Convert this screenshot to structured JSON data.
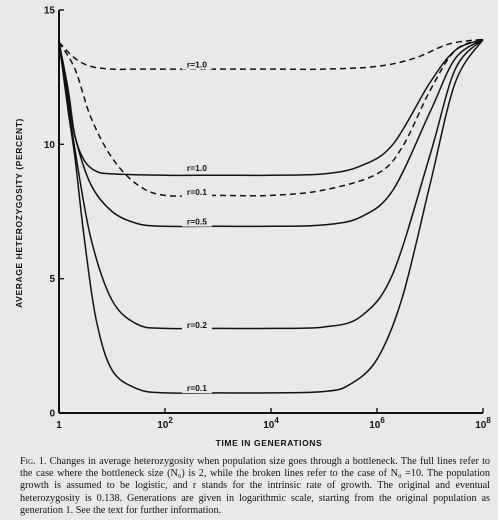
{
  "chart_data": {
    "type": "line",
    "xlabel": "TIME IN GENERATIONS",
    "ylabel": "AVERAGE HETEROZYGOSITY (PERCENT)",
    "x_scale": "log",
    "xlim": [
      1,
      100000000
    ],
    "ylim": [
      0,
      15
    ],
    "x_ticks": [
      {
        "value": 1,
        "label": "1",
        "exp": ""
      },
      {
        "value": 100,
        "label": "10",
        "exp": "2"
      },
      {
        "value": 10000,
        "label": "10",
        "exp": "4"
      },
      {
        "value": 1000000,
        "label": "10",
        "exp": "6"
      },
      {
        "value": 100000000,
        "label": "10",
        "exp": "8"
      }
    ],
    "y_ticks": [
      {
        "value": 0,
        "label": "0"
      },
      {
        "value": 5,
        "label": "5"
      },
      {
        "value": 10,
        "label": "10"
      },
      {
        "value": 15,
        "label": "15"
      }
    ],
    "series": [
      {
        "name": "r=1.0",
        "style": "dashed",
        "x": [
          1,
          2,
          4,
          10,
          30,
          100,
          1000,
          10000,
          100000,
          1000000,
          5000000,
          20000000,
          50000000,
          100000000
        ],
        "y": [
          13.8,
          13.2,
          12.9,
          12.8,
          12.8,
          12.8,
          12.8,
          12.8,
          12.8,
          12.9,
          13.2,
          13.7,
          13.85,
          13.9
        ]
      },
      {
        "name": "r=0.1",
        "style": "dashed",
        "x": [
          1,
          2,
          4,
          10,
          30,
          100,
          1000,
          10000,
          100000,
          1000000,
          3000000,
          10000000,
          30000000,
          100000000
        ],
        "y": [
          13.8,
          12.8,
          11.0,
          9.5,
          8.5,
          8.1,
          8.1,
          8.1,
          8.3,
          8.9,
          9.9,
          12.0,
          13.5,
          13.9
        ]
      },
      {
        "name": "r=1.0",
        "style": "solid",
        "x": [
          1,
          1.5,
          2,
          3,
          5,
          10,
          100,
          1000,
          10000,
          100000,
          500000,
          2000000,
          10000000,
          30000000,
          100000000
        ],
        "y": [
          13.8,
          12.0,
          10.3,
          9.4,
          9.0,
          8.9,
          8.85,
          8.85,
          8.85,
          8.9,
          9.2,
          10.0,
          12.3,
          13.5,
          13.9
        ]
      },
      {
        "name": "r=0.5",
        "style": "solid",
        "x": [
          1,
          1.5,
          2,
          4,
          10,
          30,
          100,
          1000,
          10000,
          100000,
          500000,
          2000000,
          10000000,
          30000000,
          100000000
        ],
        "y": [
          13.8,
          11.8,
          10.3,
          8.5,
          7.5,
          7.05,
          6.95,
          6.95,
          6.95,
          7.0,
          7.3,
          8.3,
          11.2,
          13.2,
          13.9
        ]
      },
      {
        "name": "r=0.2",
        "style": "solid",
        "x": [
          1,
          1.5,
          2,
          4,
          10,
          30,
          100,
          1000,
          10000,
          100000,
          500000,
          2000000,
          10000000,
          30000000,
          100000000
        ],
        "y": [
          13.8,
          11.5,
          9.8,
          6.5,
          4.2,
          3.3,
          3.15,
          3.15,
          3.15,
          3.2,
          3.6,
          5.2,
          9.6,
          12.8,
          13.9
        ]
      },
      {
        "name": "r=0.1",
        "style": "solid",
        "x": [
          1,
          1.5,
          2,
          3,
          5,
          10,
          30,
          100,
          1000,
          10000,
          100000,
          300000,
          1000000,
          3000000,
          10000000,
          30000000,
          100000000
        ],
        "y": [
          13.8,
          11.2,
          9.5,
          6.5,
          3.5,
          1.6,
          0.9,
          0.75,
          0.75,
          0.75,
          0.8,
          1.05,
          2.0,
          4.3,
          8.5,
          12.3,
          13.9
        ]
      }
    ],
    "annotations": [
      {
        "text": "r=1.0",
        "x": 400,
        "y": 12.9
      },
      {
        "text": "r=1.0",
        "x": 400,
        "y": 9.05
      },
      {
        "text": "r=0.1",
        "x": 400,
        "y": 8.15
      },
      {
        "text": "r=0.5",
        "x": 400,
        "y": 7.05
      },
      {
        "text": "r=0.2",
        "x": 400,
        "y": 3.2
      },
      {
        "text": "r=0.1",
        "x": 400,
        "y": 0.85
      }
    ]
  },
  "caption": {
    "label": "Fig. 1.",
    "text": "Changes in average heterozygosity when population size goes through a bottleneck. The full lines refer to the case where the bottleneck size (N₀) is 2, while the broken lines refer to the case of N₀ =10. The population growth is assumed to be logistic, and r stands for the intrinsic rate of growth. The original and eventual heterozygosity is 0.138. Generations are given in logarithmic scale, starting from the original population as generation 1. See the text for further information."
  }
}
